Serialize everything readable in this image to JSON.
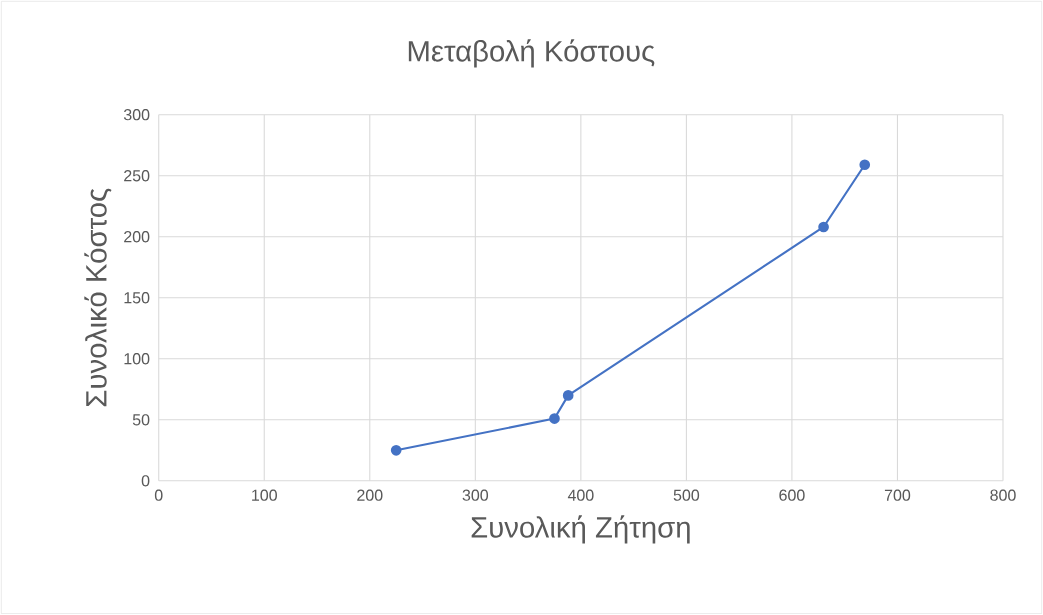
{
  "chart_data": {
    "type": "line",
    "title": "Μεταβολή Κόστους",
    "xlabel": "Συνολική Ζήτηση",
    "ylabel": "Συνολικό Κόστος",
    "x": [
      225,
      375,
      388,
      630,
      669
    ],
    "series": [
      {
        "color": "#4472c4",
        "values": [
          25,
          51,
          70,
          208,
          259
        ]
      }
    ],
    "xlim": [
      0,
      800
    ],
    "xticks": [
      0,
      100,
      200,
      300,
      400,
      500,
      600,
      700,
      800
    ],
    "ylim": [
      0,
      300
    ],
    "yticks": [
      0,
      50,
      100,
      150,
      200,
      250,
      300
    ],
    "grid": true,
    "marker": "circle",
    "line_style": "solid"
  }
}
